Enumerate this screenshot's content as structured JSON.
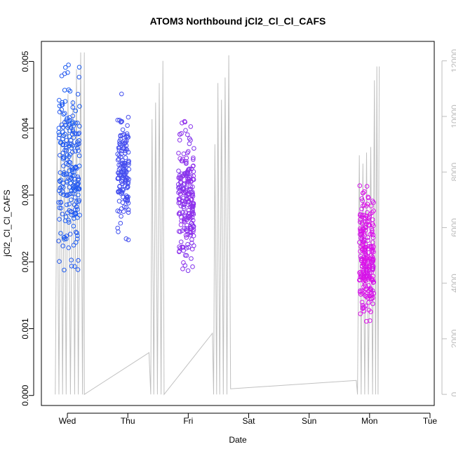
{
  "chart_data": {
    "type": "scatter",
    "title": "ATOM3 Northbound jCl2_Cl_Cl_CAFS",
    "xlabel": "Date",
    "ylabel": "jCl2_Cl_Cl_CAFS",
    "x_unit": "days since Tue 00:00",
    "xlim": [
      0.57,
      7.07
    ],
    "ylim": [
      -0.00015,
      0.0053
    ],
    "y_ticks": [
      "0.000",
      "0.001",
      "0.002",
      "0.003",
      "0.004",
      "0.005"
    ],
    "y_tick_values": [
      0,
      0.001,
      0.002,
      0.003,
      0.004,
      0.005
    ],
    "x_ticks": [
      "Wed",
      "Thu",
      "Fri",
      "Sat",
      "Sun",
      "Mon",
      "Tue"
    ],
    "x_tick_values": [
      1,
      2,
      3,
      4,
      5,
      6,
      7
    ],
    "right_axis": {
      "ylim": [
        -400,
        12700
      ],
      "ticks": [
        "0",
        "2000",
        "4000",
        "6000",
        "8000",
        "10000",
        "12000"
      ],
      "tick_values": [
        0,
        2000,
        4000,
        6000,
        8000,
        10000,
        12000
      ],
      "color": "#bdbdbd"
    },
    "colors": {
      "gray_line": "#c0c0c0",
      "start_color": "#1a5ff0",
      "end_color": "#e010e8"
    },
    "series": [
      {
        "name": "jCl2_Cl_Cl_CAFS",
        "segments": [
          {
            "x_start": 0.78,
            "x_end": 1.28,
            "y_median": 0.0034,
            "y_spread": 0.0011,
            "y_min": 0.00028,
            "y_max": 0.0052,
            "n": 230,
            "color_start": 0.0,
            "color_end": 0.08
          },
          {
            "x_start": 1.79,
            "x_end": 2.06,
            "y_median": 0.0034,
            "y_spread": 0.0007,
            "y_min": 0.00135,
            "y_max": 0.0049,
            "n": 150,
            "color_start": 0.18,
            "color_end": 0.24
          },
          {
            "x_start": 2.78,
            "x_end": 3.15,
            "y_median": 0.0029,
            "y_spread": 0.0008,
            "y_min": 0.0007,
            "y_max": 0.0047,
            "n": 220,
            "color_start": 0.5,
            "color_end": 0.62
          },
          {
            "x_start": 5.78,
            "x_end": 6.12,
            "y_median": 0.0021,
            "y_spread": 0.0007,
            "y_min": 0.0001,
            "y_max": 0.0033,
            "n": 240,
            "color_start": 0.88,
            "color_end": 1.0
          }
        ]
      },
      {
        "name": "altitude",
        "axis": "right",
        "points": [
          [
            0.8,
            0
          ],
          [
            0.83,
            9400
          ],
          [
            0.86,
            0
          ],
          [
            0.89,
            10300
          ],
          [
            0.92,
            0
          ],
          [
            0.95,
            9900
          ],
          [
            0.98,
            0
          ],
          [
            1.01,
            10800
          ],
          [
            1.05,
            0
          ],
          [
            1.09,
            10600
          ],
          [
            1.12,
            0
          ],
          [
            1.15,
            11700
          ],
          [
            1.18,
            0
          ],
          [
            1.22,
            12300
          ],
          [
            1.25,
            0
          ],
          [
            1.28,
            12300
          ],
          [
            1.28,
            0
          ],
          [
            2.35,
            1500
          ],
          [
            2.38,
            0
          ],
          [
            2.4,
            9900
          ],
          [
            2.43,
            0
          ],
          [
            2.46,
            10500
          ],
          [
            2.49,
            0
          ],
          [
            2.52,
            11200
          ],
          [
            2.55,
            0
          ],
          [
            2.58,
            12000
          ],
          [
            2.6,
            0
          ],
          [
            3.4,
            2200
          ],
          [
            3.42,
            0
          ],
          [
            3.44,
            9000
          ],
          [
            3.47,
            0
          ],
          [
            3.49,
            11200
          ],
          [
            3.52,
            0
          ],
          [
            3.55,
            10600
          ],
          [
            3.58,
            0
          ],
          [
            3.61,
            11400
          ],
          [
            3.64,
            0
          ],
          [
            3.67,
            12200
          ],
          [
            3.7,
            200
          ],
          [
            5.78,
            500
          ],
          [
            5.8,
            0
          ],
          [
            5.83,
            8600
          ],
          [
            5.86,
            0
          ],
          [
            5.89,
            8300
          ],
          [
            5.92,
            0
          ],
          [
            5.95,
            8700
          ],
          [
            5.98,
            0
          ],
          [
            6.02,
            8900
          ],
          [
            6.05,
            0
          ],
          [
            6.08,
            11300
          ],
          [
            6.1,
            0
          ],
          [
            6.12,
            11800
          ],
          [
            6.14,
            0
          ],
          [
            6.16,
            11800
          ]
        ]
      }
    ]
  }
}
